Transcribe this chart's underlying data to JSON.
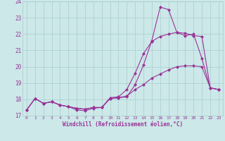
{
  "xlabel": "Windchill (Refroidissement éolien,°C)",
  "x": [
    0,
    1,
    2,
    3,
    4,
    5,
    6,
    7,
    8,
    9,
    10,
    11,
    12,
    13,
    14,
    15,
    16,
    17,
    18,
    19,
    20,
    21,
    22,
    23
  ],
  "line1": [
    17.35,
    18.05,
    17.75,
    17.85,
    17.65,
    17.55,
    17.35,
    17.3,
    17.45,
    17.5,
    18.05,
    18.1,
    18.15,
    18.9,
    20.1,
    21.6,
    23.65,
    23.5,
    22.1,
    21.9,
    22.0,
    20.5,
    18.7,
    18.6
  ],
  "line2": [
    17.35,
    18.05,
    17.75,
    17.85,
    17.65,
    17.55,
    17.45,
    17.4,
    17.5,
    17.5,
    18.1,
    18.15,
    18.6,
    19.6,
    20.8,
    21.55,
    21.85,
    22.0,
    22.1,
    22.05,
    21.9,
    21.85,
    18.7,
    18.6
  ],
  "line3": [
    17.35,
    18.05,
    17.75,
    17.85,
    17.65,
    17.55,
    17.45,
    17.4,
    17.5,
    17.5,
    18.05,
    18.1,
    18.2,
    18.6,
    18.9,
    19.3,
    19.55,
    19.8,
    20.0,
    20.05,
    20.05,
    20.0,
    18.7,
    18.6
  ],
  "color": "#993399",
  "bg_color": "#cce8e8",
  "grid_color": "#aacccc",
  "ylim": [
    17.0,
    24.0
  ],
  "yticks": [
    17,
    18,
    19,
    20,
    21,
    22,
    23,
    24
  ],
  "xticks": [
    0,
    1,
    2,
    3,
    4,
    5,
    6,
    7,
    8,
    9,
    10,
    11,
    12,
    13,
    14,
    15,
    16,
    17,
    18,
    19,
    20,
    21,
    22,
    23
  ],
  "marker": "D",
  "markersize": 2.0,
  "linewidth": 0.8
}
